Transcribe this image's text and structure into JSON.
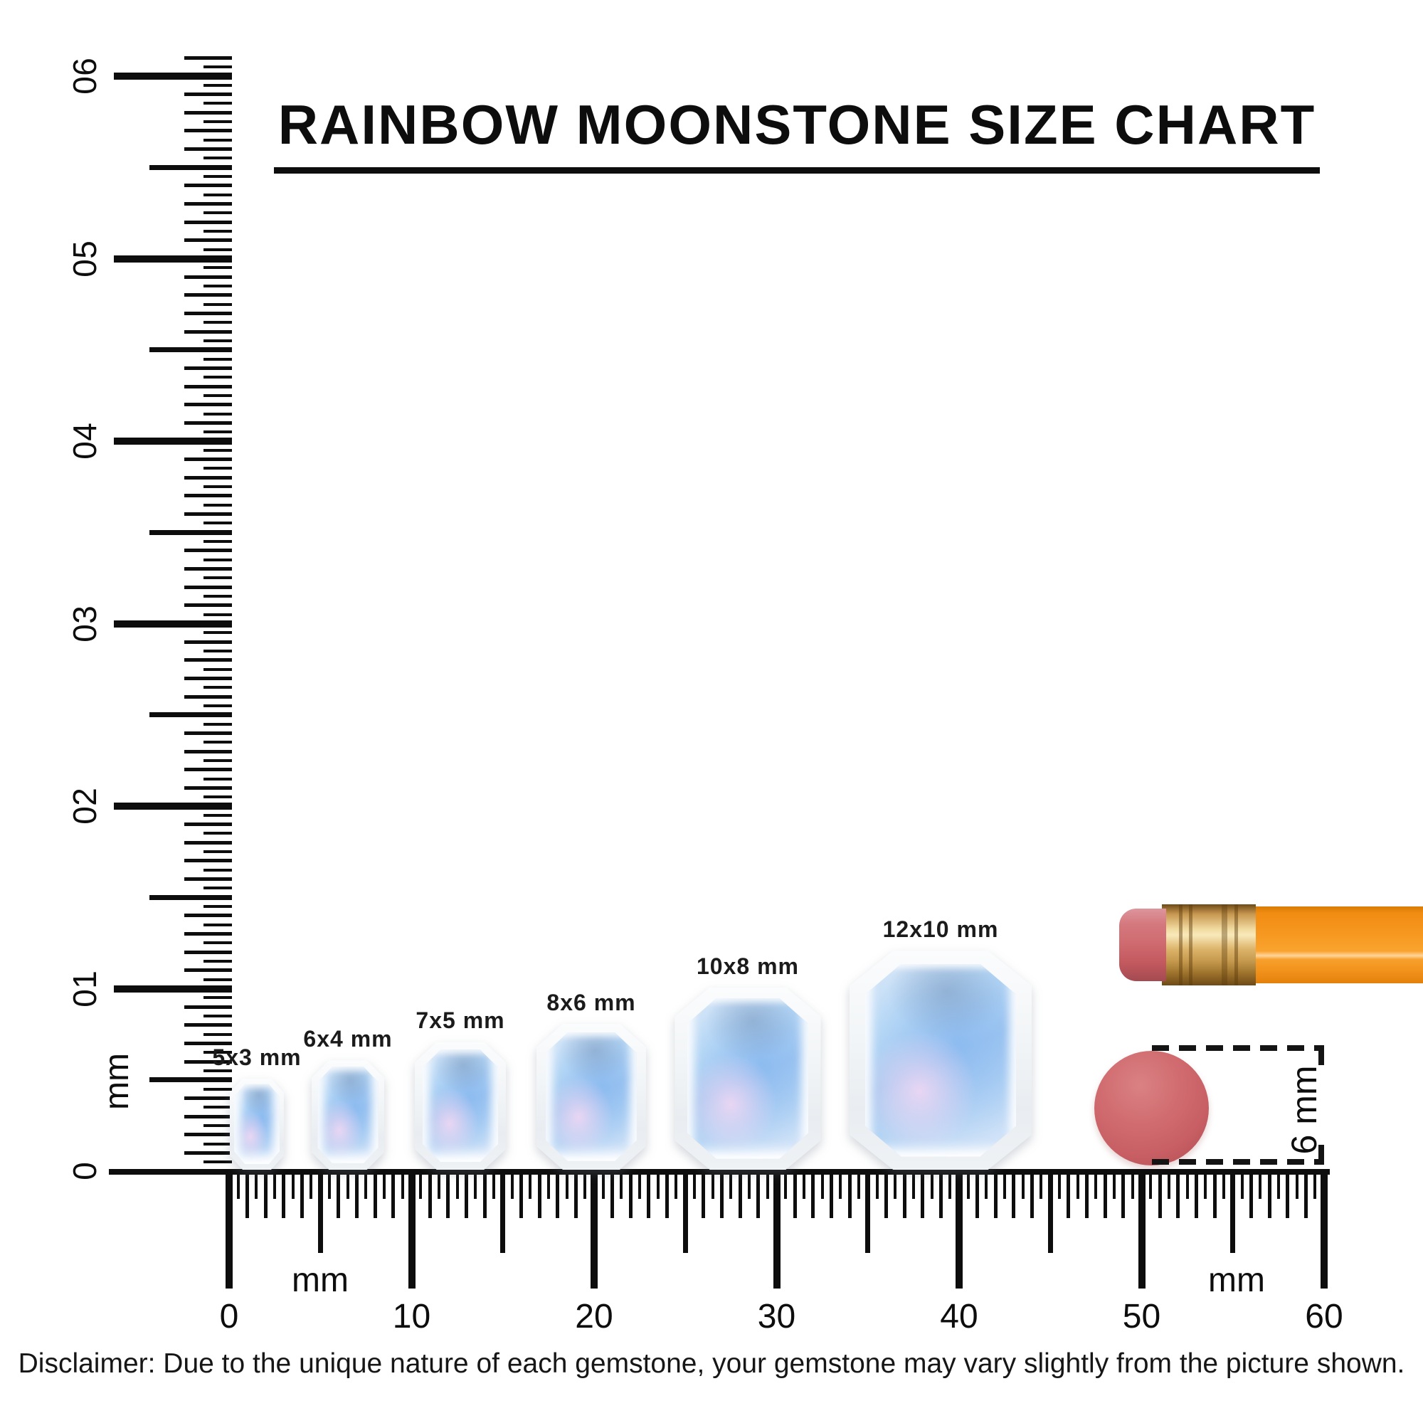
{
  "title": {
    "text": "RAINBOW MOONSTONE SIZE CHART"
  },
  "rulers": {
    "left": {
      "unit": "mm",
      "labels": [
        "0",
        "10",
        "20",
        "30",
        "40",
        "50",
        "60"
      ]
    },
    "bottom": {
      "unit": "mm",
      "labels": [
        "0",
        "10",
        "20",
        "30",
        "40",
        "50",
        "60"
      ]
    }
  },
  "stones": [
    {
      "label": "5x3 mm",
      "height_mm": 5,
      "width_mm": 3
    },
    {
      "label": "6x4 mm",
      "height_mm": 6,
      "width_mm": 4
    },
    {
      "label": "7x5 mm",
      "height_mm": 7,
      "width_mm": 5
    },
    {
      "label": "8x6 mm",
      "height_mm": 8,
      "width_mm": 6
    },
    {
      "label": "10x8 mm",
      "height_mm": 10,
      "width_mm": 8
    },
    {
      "label": "12x10 mm",
      "height_mm": 12,
      "width_mm": 10
    }
  ],
  "reference": {
    "eraser_diameter_label": "6 mm"
  },
  "disclaimer": "Disclaimer: Due to the unique nature of each gemstone, your gemstone may vary slightly from the picture shown.",
  "colors": {
    "ink": "#0d0d0d",
    "stone_blue": "#a6c9f0",
    "stone_lavender": "#ecd6f3",
    "eraser_red": "#cf686c",
    "pencil_orange": "#f79b24",
    "ferrule_brass": "#ddb46b"
  }
}
